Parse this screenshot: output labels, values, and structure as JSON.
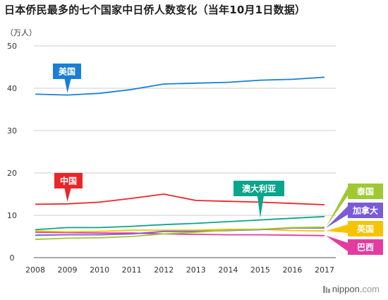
{
  "title": "日本侨民最多的七个国家中日侨人数变化（当年10月1日数据）",
  "unit_label": "（万人）",
  "brand": {
    "main": "nippon",
    "dot": ".",
    "suffix": "com"
  },
  "chart_data": {
    "type": "line",
    "title": "日本侨民最多的七个国家中日侨人数变化（当年10月1日数据）",
    "ylabel": "（万人）",
    "xlabel": "",
    "ylim": [
      0,
      50
    ],
    "yticks": [
      0,
      10,
      20,
      30,
      40,
      50
    ],
    "grid": true,
    "x": [
      "2008",
      "2009",
      "2010",
      "2011",
      "2012",
      "2013",
      "2014",
      "2015",
      "2016",
      "2017"
    ],
    "series": [
      {
        "name": "美国",
        "color": "#1a7fd4",
        "label_pos": "inline",
        "values": [
          38.6,
          38.4,
          38.8,
          39.7,
          41.0,
          41.2,
          41.4,
          41.9,
          42.1,
          42.6
        ]
      },
      {
        "name": "中国",
        "color": "#e8262b",
        "label_pos": "inline",
        "values": [
          12.6,
          12.7,
          13.1,
          14.0,
          15.0,
          13.5,
          13.3,
          13.1,
          12.8,
          12.5
        ]
      },
      {
        "name": "澳大利亚",
        "color": "#0aa58c",
        "label_pos": "inline",
        "values": [
          6.6,
          7.1,
          7.1,
          7.4,
          7.8,
          8.1,
          8.5,
          8.9,
          9.3,
          9.7
        ]
      },
      {
        "name": "泰国",
        "color": "#a0c832",
        "label_pos": "right",
        "values": [
          4.3,
          4.6,
          4.7,
          5.0,
          5.6,
          6.0,
          6.5,
          6.7,
          7.1,
          7.2
        ]
      },
      {
        "name": "加拿大",
        "color": "#7a5cd6",
        "label_pos": "right",
        "values": [
          5.3,
          5.4,
          5.4,
          5.6,
          6.2,
          6.2,
          6.4,
          6.6,
          7.0,
          7.0
        ]
      },
      {
        "name": "英国",
        "color": "#f5c400",
        "label_pos": "right",
        "values": [
          6.3,
          6.1,
          6.2,
          6.5,
          6.5,
          6.5,
          6.7,
          6.7,
          6.4,
          6.3
        ]
      },
      {
        "name": "巴西",
        "color": "#e23ca0",
        "label_pos": "right",
        "values": [
          6.0,
          5.9,
          5.8,
          5.8,
          5.6,
          5.5,
          5.4,
          5.4,
          5.3,
          5.2
        ]
      }
    ]
  }
}
